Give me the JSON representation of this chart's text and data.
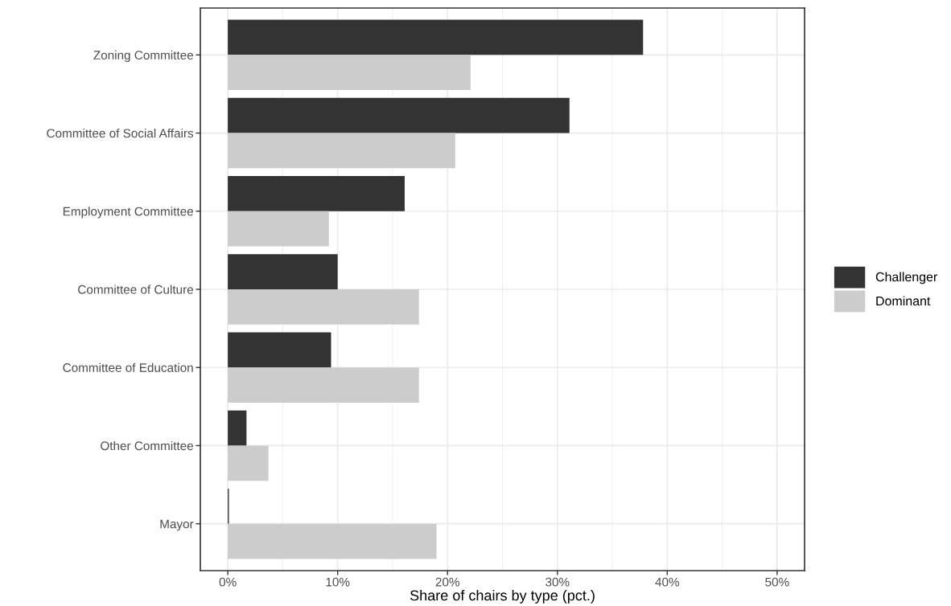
{
  "chart_data": {
    "type": "bar",
    "orientation": "horizontal",
    "xlabel": "Share of chairs by type (pct.)",
    "categories": [
      "Zoning Committee",
      "Committee of Social Affairs",
      "Employment Committee",
      "Committee of Culture",
      "Committee of Education",
      "Other Committee",
      "Mayor"
    ],
    "series": [
      {
        "name": "Challenger",
        "color": "#333333",
        "values": [
          37.8,
          31.1,
          16.1,
          10.0,
          9.4,
          1.7,
          0.1
        ]
      },
      {
        "name": "Dominant",
        "color": "#cccccc",
        "values": [
          22.1,
          20.7,
          9.2,
          17.4,
          17.4,
          3.7,
          19.0
        ]
      }
    ],
    "xlim": [
      -2.5,
      52.5
    ],
    "xticks": [
      {
        "value": 0,
        "label": "0%"
      },
      {
        "value": 10,
        "label": "10%"
      },
      {
        "value": 20,
        "label": "20%"
      },
      {
        "value": 30,
        "label": "30%"
      },
      {
        "value": 40,
        "label": "40%"
      },
      {
        "value": 50,
        "label": "50%"
      }
    ],
    "grid": true,
    "legend": "right"
  }
}
